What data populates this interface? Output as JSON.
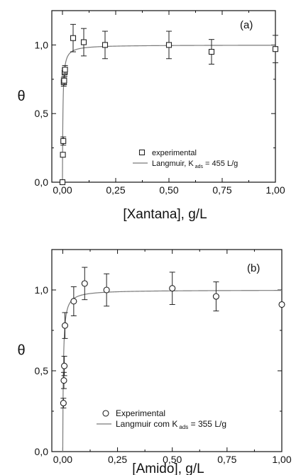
{
  "chart_data": [
    {
      "type": "scatter",
      "panel_label": "(a)",
      "xlabel": "[Xantana], g/L",
      "ylabel": "θ",
      "xlim": [
        -0.05,
        1.0
      ],
      "ylim": [
        0.0,
        1.25
      ],
      "x_ticks": [
        {
          "value": 0.0,
          "label": "0,00"
        },
        {
          "value": 0.25,
          "label": "0,25"
        },
        {
          "value": 0.5,
          "label": "0,50"
        },
        {
          "value": 0.75,
          "label": "0,75"
        },
        {
          "value": 1.0,
          "label": "1,00"
        }
      ],
      "y_ticks": [
        {
          "value": 0.0,
          "label": "0,0"
        },
        {
          "value": 0.5,
          "label": "0,5"
        },
        {
          "value": 1.0,
          "label": "1,0"
        }
      ],
      "legend_placement": "lower-right",
      "grid": false,
      "marker": "square",
      "series": [
        {
          "name": "experimental",
          "points": [
            {
              "x": 0.0,
              "y": 0.0,
              "err": 0.0
            },
            {
              "x": 0.002,
              "y": 0.2,
              "err": 0.0
            },
            {
              "x": 0.004,
              "y": 0.3,
              "err": 0.03
            },
            {
              "x": 0.006,
              "y": 0.73,
              "err": 0.03
            },
            {
              "x": 0.008,
              "y": 0.74,
              "err": 0.03
            },
            {
              "x": 0.01,
              "y": 0.8,
              "err": 0.03
            },
            {
              "x": 0.012,
              "y": 0.82,
              "err": 0.03
            },
            {
              "x": 0.05,
              "y": 1.05,
              "err": 0.1
            },
            {
              "x": 0.1,
              "y": 1.02,
              "err": 0.1
            },
            {
              "x": 0.2,
              "y": 1.0,
              "err": 0.1
            },
            {
              "x": 0.5,
              "y": 1.0,
              "err": 0.1
            },
            {
              "x": 0.7,
              "y": 0.95,
              "err": 0.09
            },
            {
              "x": 1.0,
              "y": 0.97,
              "err": 0.1
            }
          ]
        },
        {
          "name_prefix": "Langmuir, K",
          "name_subscript": "ads",
          "name_suffix": " = 455 L/g",
          "fit": "langmuir",
          "K": 455,
          "theta_max": 1.0
        }
      ]
    },
    {
      "type": "scatter",
      "panel_label": "(b)",
      "xlabel": "[Amido], g/L",
      "ylabel": "θ",
      "xlim": [
        -0.05,
        1.0
      ],
      "ylim": [
        0.0,
        1.25
      ],
      "x_ticks": [
        {
          "value": 0.0,
          "label": "0,00"
        },
        {
          "value": 0.25,
          "label": "0,25"
        },
        {
          "value": 0.5,
          "label": "0,50"
        },
        {
          "value": 0.75,
          "label": "0,75"
        },
        {
          "value": 1.0,
          "label": "1,00"
        }
      ],
      "y_ticks": [
        {
          "value": 0.0,
          "label": "0,0"
        },
        {
          "value": 0.5,
          "label": "0,5"
        },
        {
          "value": 1.0,
          "label": "1,0"
        }
      ],
      "legend_placement": "lower-right",
      "grid": false,
      "marker": "circle",
      "series": [
        {
          "name": "Experimental",
          "points": [
            {
              "x": 0.003,
              "y": 0.3,
              "err": 0.03
            },
            {
              "x": 0.005,
              "y": 0.44,
              "err": 0.05
            },
            {
              "x": 0.007,
              "y": 0.53,
              "err": 0.06
            },
            {
              "x": 0.01,
              "y": 0.78,
              "err": 0.08
            },
            {
              "x": 0.05,
              "y": 0.93,
              "err": 0.09
            },
            {
              "x": 0.1,
              "y": 1.04,
              "err": 0.1
            },
            {
              "x": 0.2,
              "y": 1.0,
              "err": 0.1
            },
            {
              "x": 0.5,
              "y": 1.01,
              "err": 0.1
            },
            {
              "x": 0.7,
              "y": 0.96,
              "err": 0.09
            },
            {
              "x": 1.0,
              "y": 0.91,
              "err": 0.0
            }
          ]
        },
        {
          "name_prefix": "Langmuir com K",
          "name_subscript": "ads",
          "name_suffix": " = 355 L/g",
          "fit": "langmuir",
          "K": 355,
          "theta_max": 1.0
        }
      ]
    }
  ]
}
